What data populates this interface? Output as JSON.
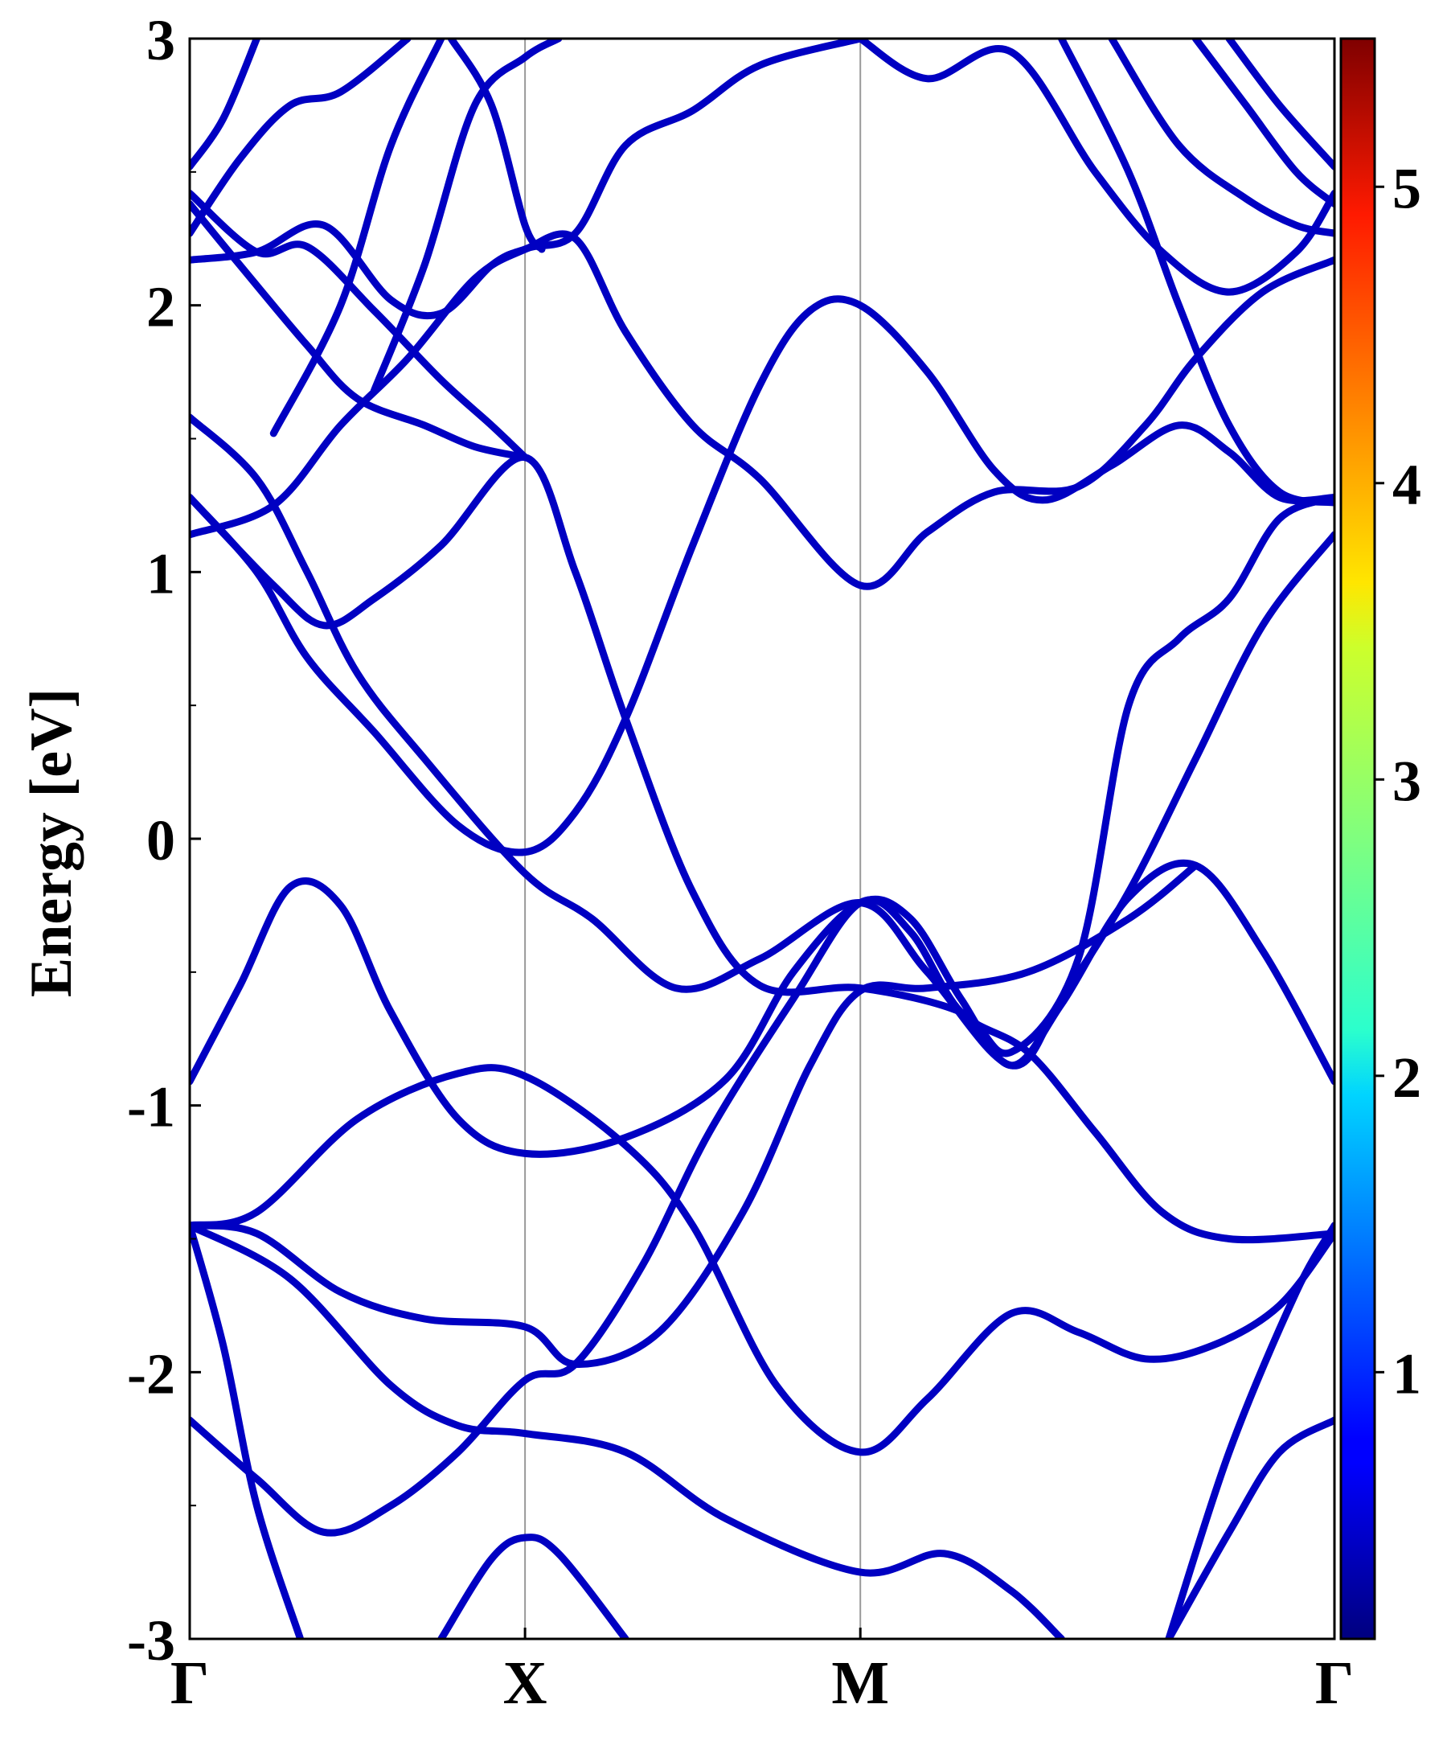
{
  "chart_data": {
    "type": "line",
    "title": "",
    "xlabel": "",
    "ylabel": "Energy [eV]",
    "ylim": [
      -3,
      3
    ],
    "y_ticks": [
      "-3",
      "-2",
      "-1",
      "0",
      "1",
      "2",
      "3"
    ],
    "k_path": [
      "Γ",
      "X",
      "M",
      "Γ"
    ],
    "k_path_positions": [
      0,
      1,
      2,
      3.414
    ],
    "xlim": [
      0,
      3.414
    ],
    "colorbar": {
      "colormap": "jet",
      "range": [
        0.1,
        5.5
      ],
      "ticks": [
        "1",
        "2",
        "3",
        "4",
        "5"
      ]
    },
    "band_color_value": 0.45,
    "series": [
      {
        "points": [
          [
            0,
            -0.91
          ],
          [
            0.15,
            -0.55
          ],
          [
            0.3,
            -0.18
          ],
          [
            0.45,
            -0.25
          ],
          [
            0.6,
            -0.65
          ],
          [
            0.8,
            -1.05
          ],
          [
            1,
            -1.18
          ],
          [
            1.3,
            -1.12
          ],
          [
            1.6,
            -0.9
          ],
          [
            1.8,
            -0.5
          ],
          [
            2,
            -0.24
          ],
          [
            2.15,
            -0.3
          ],
          [
            2.3,
            -0.6
          ],
          [
            2.45,
            -0.85
          ],
          [
            2.6,
            -0.62
          ],
          [
            2.8,
            -0.22
          ],
          [
            3.0,
            -0.1
          ],
          [
            3.2,
            -0.42
          ],
          [
            3.414,
            -0.91
          ]
        ]
      },
      {
        "points": [
          [
            0,
            -1.45
          ],
          [
            0.2,
            -1.4
          ],
          [
            0.5,
            -1.05
          ],
          [
            0.8,
            -0.88
          ],
          [
            1,
            -0.89
          ],
          [
            1.3,
            -1.15
          ],
          [
            1.5,
            -1.45
          ],
          [
            1.75,
            -2.05
          ],
          [
            2,
            -2.3
          ],
          [
            2.2,
            -2.1
          ],
          [
            2.45,
            -1.78
          ],
          [
            2.65,
            -1.85
          ],
          [
            2.85,
            -1.95
          ],
          [
            3.05,
            -1.9
          ],
          [
            3.25,
            -1.75
          ],
          [
            3.414,
            -1.48
          ]
        ]
      },
      {
        "points": [
          [
            0,
            -1.45
          ],
          [
            0.2,
            -1.48
          ],
          [
            0.45,
            -1.7
          ],
          [
            0.7,
            -1.8
          ],
          [
            1,
            -1.83
          ],
          [
            1.15,
            -1.97
          ],
          [
            1.4,
            -1.85
          ],
          [
            1.65,
            -1.4
          ],
          [
            1.85,
            -0.85
          ],
          [
            2,
            -0.57
          ],
          [
            2.2,
            -0.56
          ],
          [
            2.5,
            -0.5
          ],
          [
            2.8,
            -0.3
          ],
          [
            3.0,
            -0.1
          ]
        ]
      },
      {
        "points": [
          [
            0,
            -2.18
          ],
          [
            0.2,
            -2.4
          ],
          [
            0.4,
            -2.6
          ],
          [
            0.6,
            -2.5
          ],
          [
            0.8,
            -2.3
          ],
          [
            1,
            -2.03
          ],
          [
            1.15,
            -1.97
          ],
          [
            1.35,
            -1.6
          ],
          [
            1.55,
            -1.1
          ],
          [
            1.8,
            -0.6
          ],
          [
            2,
            -0.24
          ],
          [
            2.15,
            -0.35
          ],
          [
            2.3,
            -0.65
          ],
          [
            2.5,
            -0.8
          ],
          [
            2.7,
            -1.1
          ],
          [
            2.9,
            -1.4
          ],
          [
            3.1,
            -1.5
          ],
          [
            3.414,
            -1.48
          ]
        ]
      },
      {
        "points": [
          [
            0,
            -1.45
          ],
          [
            0.3,
            -1.65
          ],
          [
            0.6,
            -2.05
          ],
          [
            0.8,
            -2.2
          ],
          [
            1,
            -2.23
          ],
          [
            1.3,
            -2.3
          ],
          [
            1.6,
            -2.55
          ],
          [
            2,
            -2.75
          ],
          [
            2.25,
            -2.68
          ],
          [
            2.45,
            -2.82
          ],
          [
            2.6,
            -3.0
          ]
        ]
      },
      {
        "points": [
          [
            0,
            -1.45
          ],
          [
            0.1,
            -1.9
          ],
          [
            0.2,
            -2.5
          ],
          [
            0.33,
            -3.0
          ]
        ]
      },
      {
        "points": [
          [
            0.75,
            -3.0
          ],
          [
            0.9,
            -2.7
          ],
          [
            1,
            -2.62
          ],
          [
            1.1,
            -2.68
          ],
          [
            1.3,
            -3.0
          ]
        ]
      },
      {
        "points": [
          [
            2.92,
            -3.0
          ],
          [
            3.1,
            -2.6
          ],
          [
            3.25,
            -2.3
          ],
          [
            3.414,
            -2.18
          ]
        ]
      },
      {
        "points": [
          [
            2.92,
            -3.0
          ],
          [
            3.1,
            -2.3
          ],
          [
            3.3,
            -1.7
          ],
          [
            3.414,
            -1.45
          ]
        ]
      },
      {
        "points": [
          [
            0,
            1.28
          ],
          [
            0.25,
            0.95
          ],
          [
            0.4,
            0.8
          ],
          [
            0.55,
            0.9
          ],
          [
            0.75,
            1.1
          ],
          [
            1,
            1.43
          ],
          [
            1.15,
            1.0
          ],
          [
            1.3,
            0.45
          ],
          [
            1.5,
            -0.2
          ],
          [
            1.7,
            -0.55
          ],
          [
            2,
            -0.56
          ],
          [
            2.3,
            -0.65
          ],
          [
            2.45,
            -0.8
          ],
          [
            2.65,
            -0.45
          ],
          [
            2.8,
            0.5
          ],
          [
            2.95,
            0.75
          ],
          [
            3.1,
            0.9
          ],
          [
            3.25,
            1.2
          ],
          [
            3.414,
            1.28
          ]
        ]
      },
      {
        "points": [
          [
            0,
            1.14
          ],
          [
            0.25,
            1.25
          ],
          [
            0.45,
            1.55
          ],
          [
            0.65,
            1.8
          ],
          [
            0.85,
            2.1
          ],
          [
            1,
            2.21
          ],
          [
            1.15,
            2.27
          ],
          [
            1.3,
            2.6
          ],
          [
            1.5,
            2.73
          ],
          [
            1.7,
            2.9
          ],
          [
            2,
            3.0
          ]
        ]
      },
      {
        "points": [
          [
            0,
            1.28
          ],
          [
            0.2,
            1.0
          ],
          [
            0.35,
            0.68
          ],
          [
            0.55,
            0.4
          ],
          [
            0.8,
            0.05
          ],
          [
            1,
            -0.05
          ],
          [
            1.15,
            0.1
          ],
          [
            1.3,
            0.45
          ],
          [
            1.5,
            1.1
          ],
          [
            1.7,
            1.7
          ],
          [
            1.85,
            1.98
          ],
          [
            2,
            2.0
          ],
          [
            2.2,
            1.75
          ],
          [
            2.4,
            1.38
          ],
          [
            2.55,
            1.27
          ],
          [
            2.75,
            1.4
          ],
          [
            2.95,
            1.55
          ],
          [
            3.1,
            1.45
          ],
          [
            3.25,
            1.28
          ],
          [
            3.414,
            1.28
          ]
        ]
      },
      {
        "points": [
          [
            0,
            1.58
          ],
          [
            0.2,
            1.35
          ],
          [
            0.35,
            1.0
          ],
          [
            0.5,
            0.62
          ],
          [
            0.7,
            0.3
          ],
          [
            1,
            -0.13
          ],
          [
            1.2,
            -0.3
          ],
          [
            1.45,
            -0.56
          ],
          [
            1.7,
            -0.45
          ],
          [
            2,
            -0.24
          ],
          [
            2.2,
            -0.5
          ],
          [
            2.45,
            -0.85
          ],
          [
            2.6,
            -0.6
          ],
          [
            2.8,
            -0.2
          ],
          [
            3.0,
            0.3
          ],
          [
            3.2,
            0.8
          ],
          [
            3.414,
            1.14
          ]
        ]
      },
      {
        "points": [
          [
            0,
            2.42
          ],
          [
            0.2,
            2.2
          ],
          [
            0.35,
            2.22
          ],
          [
            0.55,
            1.98
          ],
          [
            0.75,
            1.72
          ],
          [
            0.9,
            1.55
          ],
          [
            1,
            1.43
          ]
        ]
      },
      {
        "points": [
          [
            0,
            2.17
          ],
          [
            0.2,
            2.2
          ],
          [
            0.4,
            2.3
          ],
          [
            0.6,
            2.02
          ],
          [
            0.75,
            1.97
          ],
          [
            0.9,
            2.15
          ],
          [
            1,
            2.21
          ],
          [
            1.15,
            2.25
          ],
          [
            1.3,
            1.9
          ],
          [
            1.5,
            1.55
          ],
          [
            1.7,
            1.35
          ],
          [
            2,
            0.95
          ],
          [
            2.2,
            1.15
          ],
          [
            2.4,
            1.3
          ],
          [
            2.65,
            1.32
          ],
          [
            2.85,
            1.55
          ],
          [
            3.0,
            1.8
          ],
          [
            3.2,
            2.05
          ],
          [
            3.414,
            2.17
          ]
        ]
      },
      {
        "points": [
          [
            0,
            2.27
          ],
          [
            0.15,
            2.55
          ],
          [
            0.3,
            2.75
          ],
          [
            0.45,
            2.8
          ],
          [
            0.65,
            3.0
          ]
        ]
      },
      {
        "points": [
          [
            0,
            2.38
          ],
          [
            0.15,
            2.15
          ],
          [
            0.35,
            1.85
          ],
          [
            0.5,
            1.65
          ],
          [
            0.7,
            1.55
          ],
          [
            0.85,
            1.47
          ],
          [
            1,
            1.43
          ]
        ]
      },
      {
        "points": [
          [
            0,
            2.52
          ],
          [
            0.1,
            2.7
          ],
          [
            0.2,
            3.0
          ]
        ]
      },
      {
        "points": [
          [
            0.55,
            1.68
          ],
          [
            0.7,
            2.15
          ],
          [
            0.85,
            2.75
          ],
          [
            1,
            2.93
          ],
          [
            1.1,
            3.0
          ]
        ]
      },
      {
        "points": [
          [
            0.25,
            1.52
          ],
          [
            0.45,
            2.0
          ],
          [
            0.6,
            2.6
          ],
          [
            0.75,
            3.0
          ]
        ]
      },
      {
        "points": [
          [
            0.78,
            3.0
          ],
          [
            0.9,
            2.75
          ],
          [
            1,
            2.3
          ],
          [
            1.05,
            2.21
          ]
        ]
      },
      {
        "points": [
          [
            2,
            3.0
          ],
          [
            2.2,
            2.85
          ],
          [
            2.45,
            2.95
          ],
          [
            2.7,
            2.5
          ],
          [
            2.9,
            2.2
          ],
          [
            3.1,
            2.05
          ],
          [
            3.3,
            2.2
          ],
          [
            3.414,
            2.42
          ]
        ]
      },
      {
        "points": [
          [
            2.6,
            3.0
          ],
          [
            2.8,
            2.5
          ],
          [
            2.95,
            2.0
          ],
          [
            3.1,
            1.55
          ],
          [
            3.25,
            1.3
          ],
          [
            3.414,
            1.26
          ]
        ]
      },
      {
        "points": [
          [
            2.75,
            3.0
          ],
          [
            2.95,
            2.6
          ],
          [
            3.15,
            2.4
          ],
          [
            3.3,
            2.3
          ],
          [
            3.414,
            2.27
          ]
        ]
      },
      {
        "points": [
          [
            3.0,
            3.0
          ],
          [
            3.15,
            2.75
          ],
          [
            3.3,
            2.5
          ],
          [
            3.414,
            2.38
          ]
        ]
      },
      {
        "points": [
          [
            3.1,
            3.0
          ],
          [
            3.25,
            2.75
          ],
          [
            3.414,
            2.52
          ]
        ]
      }
    ]
  }
}
